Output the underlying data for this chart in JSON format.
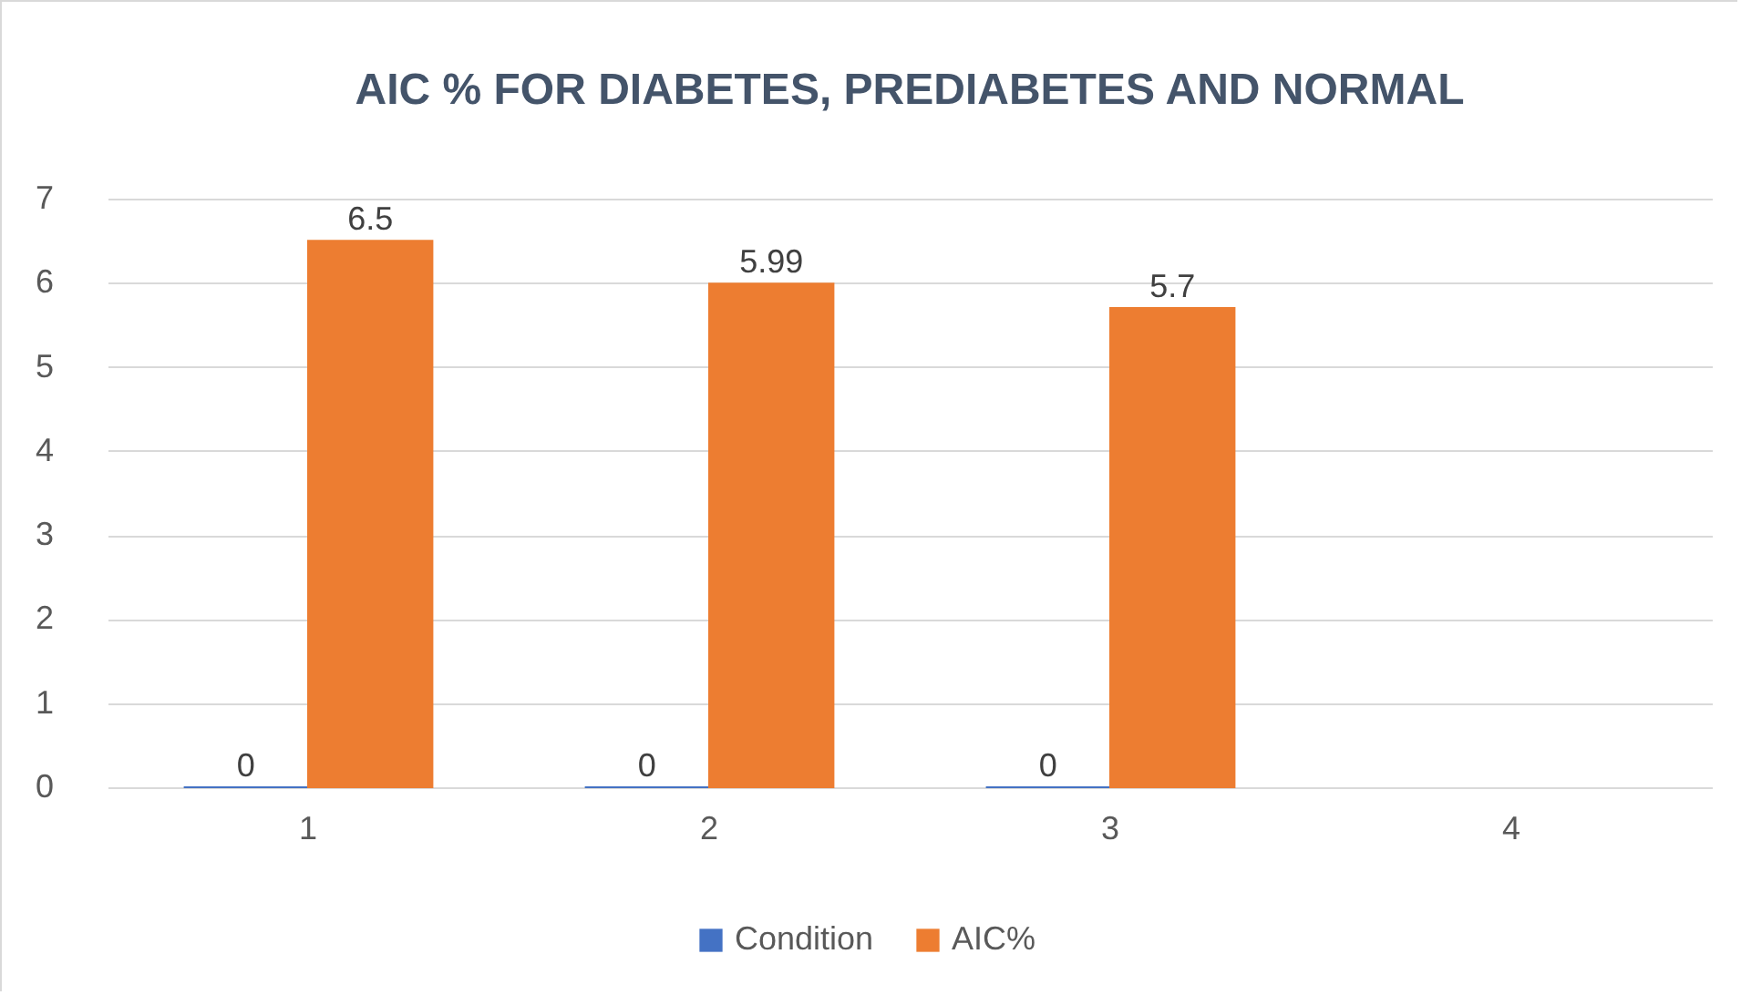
{
  "chart_data": {
    "type": "bar",
    "title": "AIC % FOR DIABETES, PREDIABETES AND NORMAL",
    "categories": [
      "1",
      "2",
      "3",
      "4"
    ],
    "series": [
      {
        "name": "Condition",
        "color": "#4472c4",
        "values": [
          0,
          0,
          0,
          null
        ]
      },
      {
        "name": "AIC%",
        "color": "#ed7d31",
        "values": [
          6.5,
          5.99,
          5.7,
          null
        ]
      }
    ],
    "ylim": [
      0,
      7
    ],
    "yticks": [
      0,
      1,
      2,
      3,
      4,
      5,
      6,
      7
    ],
    "grid": "y",
    "legend": "bottom",
    "data_labels": true
  }
}
